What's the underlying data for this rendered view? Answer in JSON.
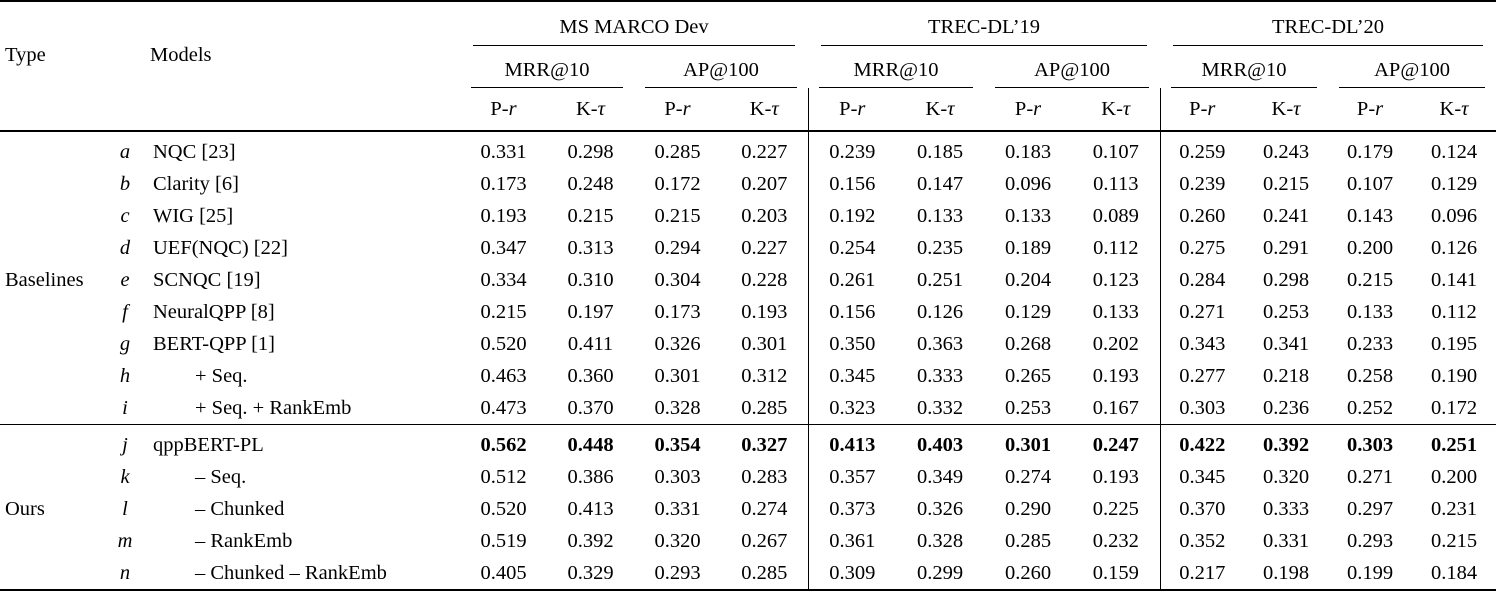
{
  "page": {
    "background": "#ffffff",
    "text_color": "#000000"
  },
  "table": {
    "type_header": "Type",
    "models_header": "Models",
    "groups": [
      {
        "label": "MS MARCO Dev",
        "metrics": [
          "MRR@10",
          "AP@100"
        ]
      },
      {
        "label": "TREC-DL’19",
        "metrics": [
          "MRR@10",
          "AP@100"
        ]
      },
      {
        "label": "TREC-DL’20",
        "metrics": [
          "MRR@10",
          "AP@100"
        ]
      }
    ],
    "sub_headers": [
      {
        "roman": "P-",
        "italic": "r"
      },
      {
        "roman": "K-",
        "italic": "τ"
      }
    ],
    "sections": [
      {
        "type_label": "Baselines",
        "rows": [
          {
            "id": "a",
            "model": "NQC [23]",
            "indent": false,
            "bold": false,
            "values": [
              "0.331",
              "0.298",
              "0.285",
              "0.227",
              "0.239",
              "0.185",
              "0.183",
              "0.107",
              "0.259",
              "0.243",
              "0.179",
              "0.124"
            ]
          },
          {
            "id": "b",
            "model": "Clarity [6]",
            "indent": false,
            "bold": false,
            "values": [
              "0.173",
              "0.248",
              "0.172",
              "0.207",
              "0.156",
              "0.147",
              "0.096",
              "0.113",
              "0.239",
              "0.215",
              "0.107",
              "0.129"
            ]
          },
          {
            "id": "c",
            "model": "WIG [25]",
            "indent": false,
            "bold": false,
            "values": [
              "0.193",
              "0.215",
              "0.215",
              "0.203",
              "0.192",
              "0.133",
              "0.133",
              "0.089",
              "0.260",
              "0.241",
              "0.143",
              "0.096"
            ]
          },
          {
            "id": "d",
            "model": "UEF(NQC) [22]",
            "indent": false,
            "bold": false,
            "values": [
              "0.347",
              "0.313",
              "0.294",
              "0.227",
              "0.254",
              "0.235",
              "0.189",
              "0.112",
              "0.275",
              "0.291",
              "0.200",
              "0.126"
            ]
          },
          {
            "id": "e",
            "model": "SCNQC [19]",
            "indent": false,
            "bold": false,
            "values": [
              "0.334",
              "0.310",
              "0.304",
              "0.228",
              "0.261",
              "0.251",
              "0.204",
              "0.123",
              "0.284",
              "0.298",
              "0.215",
              "0.141"
            ]
          },
          {
            "id": "f",
            "model": "NeuralQPP [8]",
            "indent": false,
            "bold": false,
            "values": [
              "0.215",
              "0.197",
              "0.173",
              "0.193",
              "0.156",
              "0.126",
              "0.129",
              "0.133",
              "0.271",
              "0.253",
              "0.133",
              "0.112"
            ]
          },
          {
            "id": "g",
            "model": "BERT-QPP [1]",
            "indent": false,
            "bold": false,
            "values": [
              "0.520",
              "0.411",
              "0.326",
              "0.301",
              "0.350",
              "0.363",
              "0.268",
              "0.202",
              "0.343",
              "0.341",
              "0.233",
              "0.195"
            ]
          },
          {
            "id": "h",
            "model": "+ Seq.",
            "indent": true,
            "bold": false,
            "values": [
              "0.463",
              "0.360",
              "0.301",
              "0.312",
              "0.345",
              "0.333",
              "0.265",
              "0.193",
              "0.277",
              "0.218",
              "0.258",
              "0.190"
            ]
          },
          {
            "id": "i",
            "model": "+ Seq. + RankEmb",
            "indent": true,
            "bold": false,
            "values": [
              "0.473",
              "0.370",
              "0.328",
              "0.285",
              "0.323",
              "0.332",
              "0.253",
              "0.167",
              "0.303",
              "0.236",
              "0.252",
              "0.172"
            ]
          }
        ]
      },
      {
        "type_label": "Ours",
        "rows": [
          {
            "id": "j",
            "model": "qppBERT-PL",
            "indent": false,
            "bold": true,
            "values": [
              "0.562",
              "0.448",
              "0.354",
              "0.327",
              "0.413",
              "0.403",
              "0.301",
              "0.247",
              "0.422",
              "0.392",
              "0.303",
              "0.251"
            ]
          },
          {
            "id": "k",
            "model": "– Seq.",
            "indent": true,
            "bold": false,
            "values": [
              "0.512",
              "0.386",
              "0.303",
              "0.283",
              "0.357",
              "0.349",
              "0.274",
              "0.193",
              "0.345",
              "0.320",
              "0.271",
              "0.200"
            ]
          },
          {
            "id": "l",
            "model": "– Chunked",
            "indent": true,
            "bold": false,
            "values": [
              "0.520",
              "0.413",
              "0.331",
              "0.274",
              "0.373",
              "0.326",
              "0.290",
              "0.225",
              "0.370",
              "0.333",
              "0.297",
              "0.231"
            ]
          },
          {
            "id": "m",
            "model": "– RankEmb",
            "indent": true,
            "bold": false,
            "values": [
              "0.519",
              "0.392",
              "0.320",
              "0.267",
              "0.361",
              "0.328",
              "0.285",
              "0.232",
              "0.352",
              "0.331",
              "0.293",
              "0.215"
            ]
          },
          {
            "id": "n",
            "model": "– Chunked – RankEmb",
            "indent": true,
            "bold": false,
            "values": [
              "0.405",
              "0.329",
              "0.293",
              "0.285",
              "0.309",
              "0.299",
              "0.260",
              "0.159",
              "0.217",
              "0.198",
              "0.199",
              "0.184"
            ]
          }
        ]
      }
    ]
  }
}
